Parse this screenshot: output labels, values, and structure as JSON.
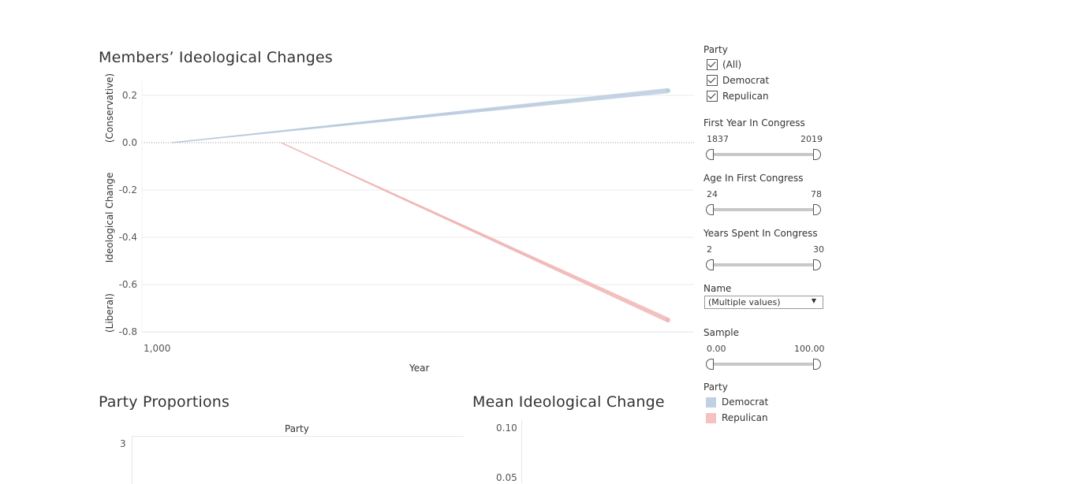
{
  "charts": {
    "ideology": {
      "title": "Members’ Ideological Changes",
      "ylabel_top": "(Conservative)",
      "ylabel_mid": "Ideological Change",
      "ylabel_bottom": "(Liberal)",
      "xlabel": "Year",
      "x_tick": "1,000"
    },
    "party_props": {
      "title": "Party Proportions",
      "column_header": "Party",
      "y_tick": "3"
    },
    "mean_change": {
      "title": "Mean Ideological Change",
      "y_tick_top": "0.10",
      "y_tick_partial": "0.05"
    }
  },
  "chart_data": [
    {
      "type": "line",
      "title": "Members’ Ideological Changes",
      "xlabel": "Year",
      "ylabel": "Ideological Change",
      "ylim": [
        -0.8,
        0.2
      ],
      "yticks": [
        "0.2",
        "0.0",
        "-0.2",
        "-0.4",
        "-0.6",
        "-0.8"
      ],
      "xticks": [
        "1,000"
      ],
      "grid": true,
      "series": [
        {
          "name": "Democrat",
          "color": "#b9cbdf",
          "points": [
            [
              0,
              0.0
            ],
            [
              1,
              0.22
            ]
          ]
        },
        {
          "name": "Repulican",
          "color": "#f0b5b5",
          "points": [
            [
              0.22,
              0.0
            ],
            [
              1,
              -0.75
            ]
          ]
        }
      ]
    },
    {
      "type": "bar",
      "title": "Party Proportions",
      "xlabel": "Party",
      "yticks": [
        "3"
      ]
    },
    {
      "type": "bar",
      "title": "Mean Ideological Change",
      "yticks": [
        "0.10",
        "0.05"
      ]
    }
  ],
  "filters": {
    "party": {
      "title": "Party",
      "options": [
        "(All)",
        "Democrat",
        "Repulican"
      ]
    },
    "first_year": {
      "title": "First Year In Congress",
      "min": "1837",
      "max": "2019"
    },
    "age": {
      "title": "Age In First Congress",
      "min": "24",
      "max": "78"
    },
    "years": {
      "title": "Years Spent In Congress",
      "min": "2",
      "max": "30"
    },
    "name": {
      "title": "Name",
      "value": "(Multiple values)"
    },
    "sample": {
      "title": "Sample",
      "min": "0.00",
      "max": "100.00"
    }
  },
  "legend": {
    "title": "Party",
    "items": [
      {
        "label": "Democrat",
        "color": "#c1d1e2"
      },
      {
        "label": "Repulican",
        "color": "#f5c1c1"
      }
    ]
  }
}
